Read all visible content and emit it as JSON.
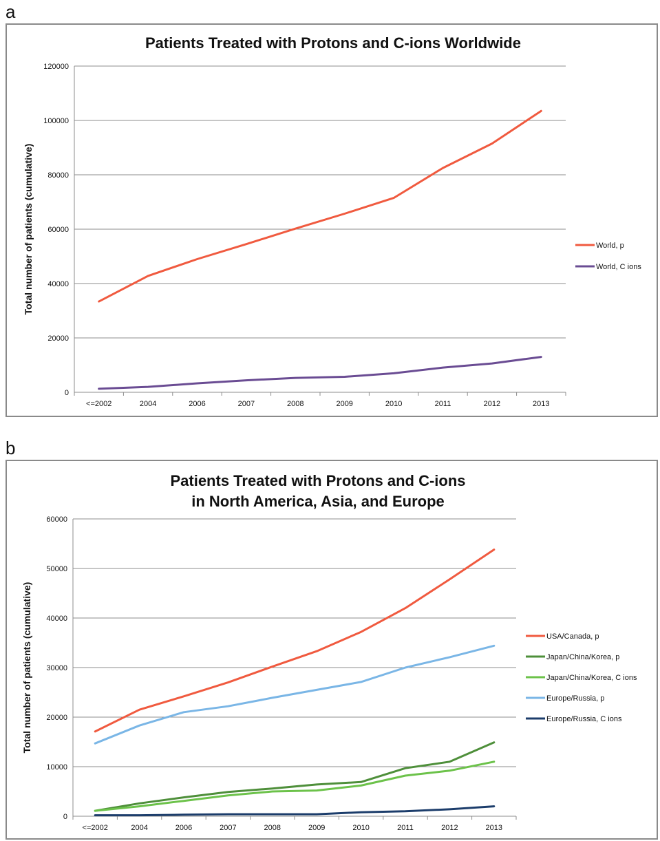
{
  "panels": [
    {
      "letter": "a",
      "chart_data": {
        "type": "line",
        "title": [
          "Patients Treated with Protons and C-ions Worldwide"
        ],
        "ylabel": "Total number of patients (cumulative)",
        "xlabel": "",
        "categories": [
          "<=2002",
          "2004",
          "2006",
          "2007",
          "2008",
          "2009",
          "2010",
          "2011",
          "2012",
          "2013"
        ],
        "ylim": [
          0,
          120000
        ],
        "yticks": [
          0,
          20000,
          40000,
          60000,
          80000,
          100000,
          120000
        ],
        "grid": true,
        "legend_position": "right",
        "series": [
          {
            "name": "World, p",
            "color": "#f05a3f",
            "values": [
              33400,
              42800,
              49000,
              54500,
              60200,
              65700,
              71500,
              82500,
              91500,
              103500
            ]
          },
          {
            "name": "World, C ions",
            "color": "#6a4c93",
            "values": [
              1300,
              2000,
              3300,
              4400,
              5300,
              5700,
              7000,
              9100,
              10600,
              13000
            ]
          }
        ]
      }
    },
    {
      "letter": "b",
      "chart_data": {
        "type": "line",
        "title": [
          "Patients Treated with Protons and C-ions",
          "in North America, Asia, and Europe"
        ],
        "ylabel": "Total number of patients (cumulative)",
        "xlabel": "",
        "categories": [
          "<=2002",
          "2004",
          "2006",
          "2007",
          "2008",
          "2009",
          "2010",
          "2011",
          "2012",
          "2013"
        ],
        "ylim": [
          0,
          60000
        ],
        "yticks": [
          0,
          10000,
          20000,
          30000,
          40000,
          50000,
          60000
        ],
        "grid": true,
        "legend_position": "right",
        "series": [
          {
            "name": "USA/Canada, p",
            "color": "#f05a3f",
            "values": [
              17100,
              21500,
              24200,
              27000,
              30200,
              33300,
              37200,
              42000,
              47800,
              53800
            ]
          },
          {
            "name": "Japan/China/Korea, p",
            "color": "#4e8f3a",
            "values": [
              1100,
              2600,
              3800,
              4900,
              5600,
              6400,
              6900,
              9700,
              11000,
              14900
            ]
          },
          {
            "name": "Japan/China/Korea, C ions",
            "color": "#6cc24a",
            "values": [
              1100,
              2000,
              3100,
              4200,
              5000,
              5200,
              6200,
              8200,
              9200,
              11000
            ]
          },
          {
            "name": "Europe/Russia, p",
            "color": "#7ab6e6",
            "values": [
              14700,
              18300,
              21000,
              22200,
              23900,
              25500,
              27100,
              30000,
              32100,
              34400
            ]
          },
          {
            "name": "Europe/Russia, C ions",
            "color": "#1c3d6b",
            "values": [
              200,
              200,
              300,
              400,
              400,
              400,
              800,
              1000,
              1400,
              2000
            ]
          }
        ]
      }
    }
  ]
}
